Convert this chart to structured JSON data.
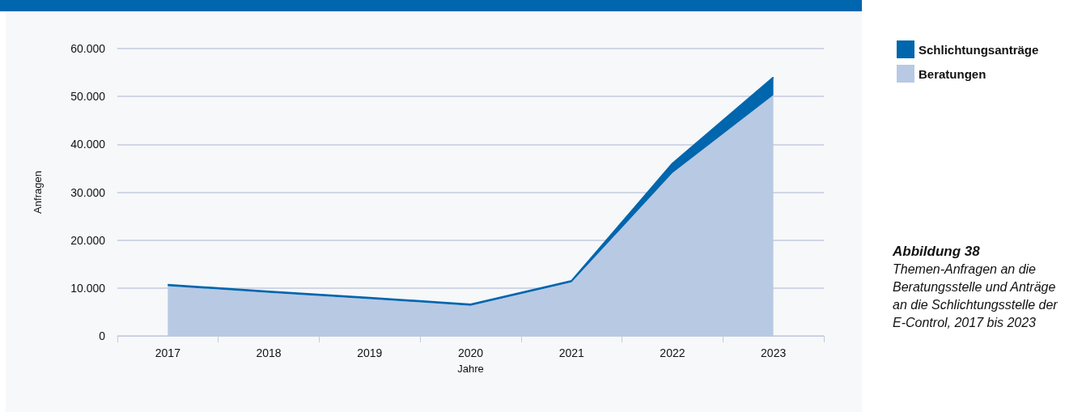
{
  "chart_data": {
    "type": "area",
    "title": "Abbildung 38",
    "subtitle": "Themen-Anfragen an die Beratungsstelle und Anträge an die Schlichtungsstelle der E-Control, 2017 bis 2023",
    "xlabel": "Jahre",
    "ylabel": "Anfragen",
    "categories": [
      "2017",
      "2018",
      "2019",
      "2020",
      "2021",
      "2022",
      "2023"
    ],
    "stacked": true,
    "series": [
      {
        "name": "Beratungen",
        "color": "#b8c9e4",
        "values": [
          10400,
          9000,
          7700,
          6300,
          11200,
          34000,
          50300
        ]
      },
      {
        "name": "Schlichtungsanträge",
        "color": "#0066ad",
        "values": [
          300,
          300,
          300,
          300,
          300,
          2000,
          3700
        ]
      }
    ],
    "ylim": [
      0,
      60000
    ],
    "yticks": [
      {
        "value": 0,
        "label": "0"
      },
      {
        "value": 10000,
        "label": "10.000"
      },
      {
        "value": 20000,
        "label": "20.000"
      },
      {
        "value": 30000,
        "label": "30.000"
      },
      {
        "value": 40000,
        "label": "40.000"
      },
      {
        "value": 50000,
        "label": "50.000"
      },
      {
        "value": 60000,
        "label": "60.000"
      }
    ],
    "grid": "y",
    "legend": "right"
  }
}
